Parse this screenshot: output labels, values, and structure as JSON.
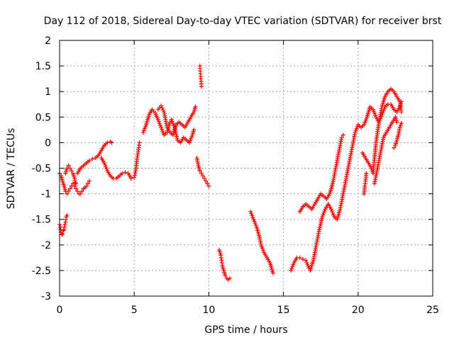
{
  "chart_data": {
    "type": "scatter",
    "title": "Day 112 of 2018, Sidereal Day-to-day VTEC variation (SDTVAR) for receiver brst",
    "xlabel": "GPS time / hours",
    "ylabel": "SDTVAR / TECUs",
    "xlim": [
      0,
      25
    ],
    "ylim": [
      -3,
      2
    ],
    "xticks": [
      0,
      5,
      10,
      15,
      20,
      25
    ],
    "yticks": [
      -3,
      -2.5,
      -2,
      -1.5,
      -1,
      -0.5,
      0,
      0.5,
      1,
      1.5,
      2
    ],
    "xtick_labels": [
      "0",
      "5",
      "10",
      "15",
      "20",
      "25"
    ],
    "ytick_labels": [
      "-3",
      "-2.5",
      "-2",
      "-1.5",
      "-1",
      "-0.5",
      "0",
      "0.5",
      "1",
      "1.5",
      "2"
    ],
    "grid": true,
    "marker": "+",
    "marker_color": "#ff0000",
    "series": [
      {
        "name": "SDTVAR",
        "segments": [
          [
            [
              0.0,
              -0.6
            ],
            [
              0.1,
              -0.65
            ],
            [
              0.2,
              -0.75
            ],
            [
              0.3,
              -0.85
            ],
            [
              0.4,
              -0.95
            ],
            [
              0.5,
              -1.0
            ],
            [
              0.6,
              -0.95
            ],
            [
              0.7,
              -0.9
            ],
            [
              0.8,
              -0.85
            ],
            [
              0.9,
              -0.8
            ],
            [
              1.0,
              -0.85
            ],
            [
              1.1,
              -0.9
            ],
            [
              1.2,
              -0.95
            ],
            [
              1.3,
              -1.0
            ],
            [
              1.4,
              -1.0
            ],
            [
              1.5,
              -0.95
            ],
            [
              1.6,
              -0.9
            ],
            [
              1.7,
              -0.88
            ],
            [
              1.8,
              -0.85
            ],
            [
              1.9,
              -0.8
            ],
            [
              2.0,
              -0.75
            ]
          ],
          [
            [
              0.0,
              -1.6
            ],
            [
              0.05,
              -1.65
            ],
            [
              0.1,
              -1.75
            ],
            [
              0.15,
              -1.8
            ],
            [
              0.2,
              -1.78
            ],
            [
              0.25,
              -1.72
            ],
            [
              0.3,
              -1.7
            ],
            [
              0.35,
              -1.6
            ],
            [
              0.4,
              -1.55
            ],
            [
              0.45,
              -1.45
            ],
            [
              0.5,
              -1.42
            ]
          ],
          [
            [
              0.4,
              -0.6
            ],
            [
              0.5,
              -0.5
            ],
            [
              0.6,
              -0.45
            ],
            [
              0.7,
              -0.5
            ],
            [
              0.8,
              -0.55
            ],
            [
              0.9,
              -0.6
            ],
            [
              1.0,
              -0.7
            ],
            [
              1.05,
              -0.78
            ],
            [
              1.1,
              -0.8
            ]
          ],
          [
            [
              1.2,
              -0.6
            ],
            [
              1.4,
              -0.5
            ],
            [
              1.6,
              -0.45
            ],
            [
              1.8,
              -0.4
            ],
            [
              2.0,
              -0.35
            ],
            [
              2.2,
              -0.32
            ],
            [
              2.4,
              -0.3
            ],
            [
              2.6,
              -0.25
            ],
            [
              2.8,
              -0.15
            ],
            [
              3.0,
              -0.05
            ],
            [
              3.2,
              0.0
            ],
            [
              3.4,
              0.02
            ],
            [
              3.5,
              0.0
            ]
          ],
          [
            [
              2.8,
              -0.3
            ],
            [
              3.0,
              -0.4
            ],
            [
              3.2,
              -0.55
            ],
            [
              3.4,
              -0.65
            ],
            [
              3.6,
              -0.7
            ],
            [
              3.8,
              -0.7
            ],
            [
              4.0,
              -0.65
            ],
            [
              4.2,
              -0.6
            ],
            [
              4.4,
              -0.58
            ],
            [
              4.6,
              -0.6
            ],
            [
              4.8,
              -0.7
            ],
            [
              5.0,
              -0.68
            ],
            [
              5.1,
              -0.55
            ],
            [
              5.2,
              -0.3
            ],
            [
              5.3,
              -0.1
            ],
            [
              5.35,
              0.0
            ]
          ],
          [
            [
              5.6,
              0.2
            ],
            [
              5.8,
              0.35
            ],
            [
              6.0,
              0.55
            ],
            [
              6.2,
              0.65
            ],
            [
              6.4,
              0.58
            ],
            [
              6.6,
              0.45
            ],
            [
              6.8,
              0.3
            ],
            [
              7.0,
              0.15
            ],
            [
              7.2,
              0.2
            ],
            [
              7.4,
              0.4
            ],
            [
              7.5,
              0.45
            ],
            [
              7.7,
              0.3
            ],
            [
              7.9,
              0.05
            ],
            [
              8.1,
              0.0
            ],
            [
              8.3,
              0.1
            ],
            [
              8.5,
              0.05
            ],
            [
              8.7,
              0.0
            ],
            [
              8.9,
              0.15
            ],
            [
              9.0,
              0.25
            ]
          ],
          [
            [
              6.6,
              0.65
            ],
            [
              6.8,
              0.72
            ],
            [
              7.0,
              0.6
            ],
            [
              7.2,
              0.3
            ],
            [
              7.4,
              0.2
            ],
            [
              7.6,
              0.15
            ],
            [
              7.8,
              0.35
            ],
            [
              8.0,
              0.4
            ],
            [
              8.2,
              0.35
            ],
            [
              8.4,
              0.3
            ],
            [
              8.6,
              0.4
            ],
            [
              8.8,
              0.5
            ],
            [
              9.0,
              0.6
            ],
            [
              9.1,
              0.7
            ]
          ],
          [
            [
              9.4,
              1.5
            ],
            [
              9.42,
              1.4
            ],
            [
              9.45,
              1.3
            ],
            [
              9.48,
              1.2
            ],
            [
              9.5,
              1.1
            ]
          ],
          [
            [
              9.2,
              -0.3
            ],
            [
              9.3,
              -0.45
            ],
            [
              9.4,
              -0.55
            ],
            [
              9.5,
              -0.6
            ],
            [
              9.6,
              -0.65
            ],
            [
              9.7,
              -0.7
            ],
            [
              9.8,
              -0.75
            ],
            [
              9.9,
              -0.8
            ],
            [
              10.0,
              -0.85
            ]
          ],
          [
            [
              10.7,
              -2.1
            ],
            [
              10.8,
              -2.2
            ],
            [
              10.85,
              -2.3
            ],
            [
              10.9,
              -2.4
            ],
            [
              11.0,
              -2.5
            ],
            [
              11.1,
              -2.6
            ],
            [
              11.2,
              -2.65
            ],
            [
              11.3,
              -2.68
            ],
            [
              11.4,
              -2.65
            ]
          ],
          [
            [
              12.8,
              -1.35
            ],
            [
              13.0,
              -1.5
            ],
            [
              13.2,
              -1.65
            ],
            [
              13.4,
              -1.85
            ],
            [
              13.5,
              -2.0
            ],
            [
              13.7,
              -2.15
            ],
            [
              13.9,
              -2.25
            ],
            [
              14.1,
              -2.35
            ],
            [
              14.2,
              -2.45
            ],
            [
              14.3,
              -2.55
            ]
          ],
          [
            [
              15.5,
              -2.5
            ],
            [
              15.7,
              -2.35
            ],
            [
              15.9,
              -2.25
            ],
            [
              16.1,
              -2.25
            ],
            [
              16.3,
              -2.28
            ],
            [
              16.5,
              -2.3
            ],
            [
              16.7,
              -2.45
            ],
            [
              16.8,
              -2.5
            ],
            [
              17.0,
              -2.3
            ],
            [
              17.2,
              -2.0
            ],
            [
              17.4,
              -1.7
            ],
            [
              17.6,
              -1.45
            ],
            [
              17.8,
              -1.3
            ],
            [
              18.0,
              -1.2
            ],
            [
              18.2,
              -1.3
            ],
            [
              18.4,
              -1.45
            ],
            [
              18.6,
              -1.5
            ],
            [
              18.8,
              -1.3
            ],
            [
              19.0,
              -1.0
            ],
            [
              19.2,
              -0.7
            ],
            [
              19.4,
              -0.4
            ],
            [
              19.6,
              -0.1
            ],
            [
              19.8,
              0.2
            ],
            [
              20.0,
              0.35
            ],
            [
              20.2,
              0.3
            ],
            [
              20.4,
              0.35
            ],
            [
              20.6,
              0.5
            ],
            [
              20.8,
              0.7
            ],
            [
              21.0,
              0.65
            ],
            [
              21.2,
              0.5
            ],
            [
              21.4,
              0.4
            ],
            [
              21.6,
              0.55
            ],
            [
              21.8,
              0.7
            ],
            [
              22.0,
              0.75
            ],
            [
              22.2,
              0.75
            ],
            [
              22.4,
              0.65
            ],
            [
              22.6,
              0.6
            ],
            [
              22.8,
              0.7
            ],
            [
              22.9,
              0.8
            ]
          ],
          [
            [
              16.1,
              -1.35
            ],
            [
              16.3,
              -1.25
            ],
            [
              16.5,
              -1.2
            ],
            [
              16.7,
              -1.25
            ],
            [
              16.9,
              -1.3
            ],
            [
              17.1,
              -1.2
            ],
            [
              17.3,
              -1.1
            ],
            [
              17.5,
              -1.0
            ],
            [
              17.7,
              -1.05
            ],
            [
              17.9,
              -1.1
            ],
            [
              18.1,
              -1.0
            ],
            [
              18.3,
              -0.8
            ],
            [
              18.5,
              -0.5
            ],
            [
              18.7,
              -0.2
            ],
            [
              18.9,
              0.1
            ],
            [
              19.0,
              0.15
            ]
          ],
          [
            [
              20.3,
              -0.2
            ],
            [
              20.5,
              -0.3
            ],
            [
              20.7,
              -0.4
            ],
            [
              20.9,
              -0.5
            ],
            [
              21.0,
              -0.6
            ],
            [
              21.2,
              0.0
            ],
            [
              21.4,
              0.4
            ],
            [
              21.6,
              0.7
            ],
            [
              21.8,
              0.9
            ],
            [
              22.0,
              1.0
            ],
            [
              22.2,
              1.05
            ],
            [
              22.4,
              1.0
            ],
            [
              22.6,
              0.9
            ],
            [
              22.8,
              0.8
            ],
            [
              22.9,
              0.6
            ]
          ],
          [
            [
              21.1,
              -0.8
            ],
            [
              21.3,
              -0.5
            ],
            [
              21.5,
              -0.2
            ],
            [
              21.7,
              0.1
            ],
            [
              21.9,
              0.2
            ],
            [
              22.1,
              0.3
            ],
            [
              22.3,
              0.4
            ],
            [
              22.5,
              0.5
            ],
            [
              22.6,
              0.4
            ]
          ],
          [
            [
              22.4,
              -0.1
            ],
            [
              22.5,
              -0.05
            ],
            [
              22.6,
              0.05
            ],
            [
              22.7,
              0.15
            ],
            [
              22.8,
              0.3
            ],
            [
              22.9,
              0.38
            ]
          ],
          [
            [
              20.4,
              -1.0
            ],
            [
              20.45,
              -0.85
            ],
            [
              20.5,
              -0.75
            ],
            [
              20.55,
              -0.6
            ]
          ]
        ]
      }
    ]
  }
}
